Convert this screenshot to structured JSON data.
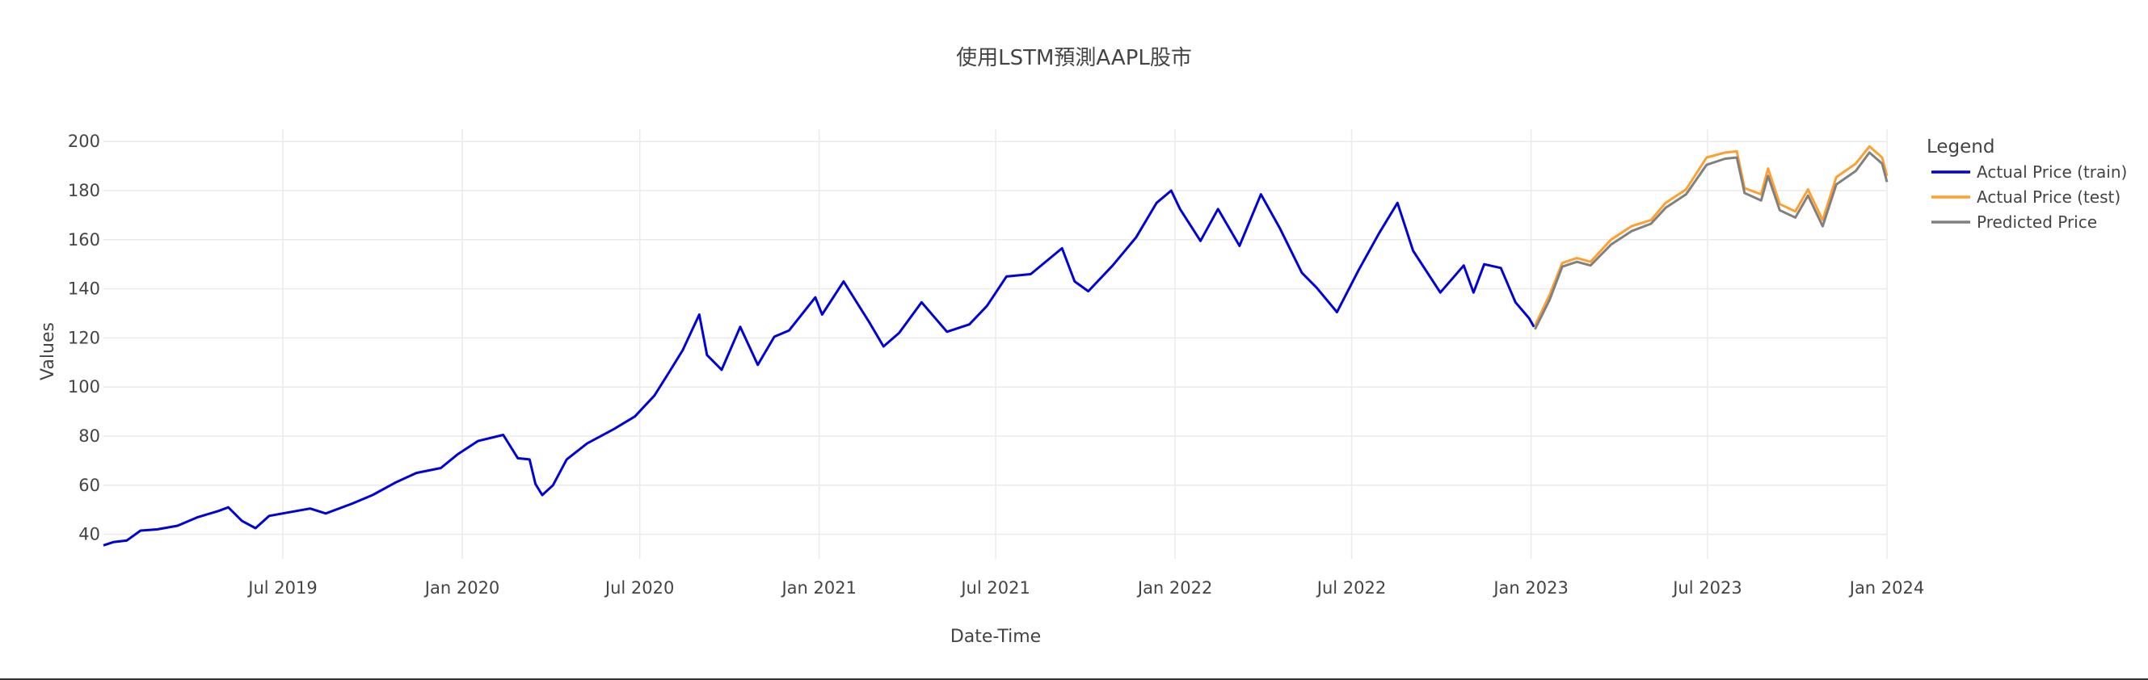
{
  "chart_data": {
    "type": "line",
    "title": "使用LSTM預測AAPL股市",
    "xlabel": "Date-Time",
    "ylabel": "Values",
    "legend_title": "Legend",
    "legend_position": "right",
    "grid": true,
    "x_range": [
      "2018-12-29",
      "2024-01-01"
    ],
    "ylim": [
      30,
      205
    ],
    "y_ticks": [
      40,
      60,
      80,
      100,
      120,
      140,
      160,
      180,
      200
    ],
    "x_ticks": [
      {
        "date": "2019-07-01",
        "label": "Jul 2019"
      },
      {
        "date": "2020-01-01",
        "label": "Jan 2020"
      },
      {
        "date": "2020-07-01",
        "label": "Jul 2020"
      },
      {
        "date": "2021-01-01",
        "label": "Jan 2021"
      },
      {
        "date": "2021-07-01",
        "label": "Jul 2021"
      },
      {
        "date": "2022-01-01",
        "label": "Jan 2022"
      },
      {
        "date": "2022-07-01",
        "label": "Jul 2022"
      },
      {
        "date": "2023-01-01",
        "label": "Jan 2023"
      },
      {
        "date": "2023-07-01",
        "label": "Jul 2023"
      },
      {
        "date": "2024-01-01",
        "label": "Jan 2024"
      }
    ],
    "series": [
      {
        "name": "Actual Price (train)",
        "color": "#0000dd",
        "points": [
          [
            "2018-12-29",
            35.5
          ],
          [
            "2019-01-08",
            36.8
          ],
          [
            "2019-01-22",
            37.5
          ],
          [
            "2019-02-05",
            41.5
          ],
          [
            "2019-02-22",
            42.0
          ],
          [
            "2019-03-15",
            43.5
          ],
          [
            "2019-04-05",
            47.0
          ],
          [
            "2019-04-26",
            49.5
          ],
          [
            "2019-05-06",
            51.0
          ],
          [
            "2019-05-20",
            45.5
          ],
          [
            "2019-06-03",
            42.5
          ],
          [
            "2019-06-17",
            47.5
          ],
          [
            "2019-07-08",
            49.0
          ],
          [
            "2019-07-29",
            50.5
          ],
          [
            "2019-08-14",
            48.5
          ],
          [
            "2019-09-10",
            52.5
          ],
          [
            "2019-10-01",
            56.0
          ],
          [
            "2019-10-24",
            61.0
          ],
          [
            "2019-11-15",
            65.0
          ],
          [
            "2019-12-10",
            67.0
          ],
          [
            "2019-12-27",
            72.5
          ],
          [
            "2020-01-17",
            78.0
          ],
          [
            "2020-02-12",
            80.5
          ],
          [
            "2020-02-27",
            71.0
          ],
          [
            "2020-03-10",
            70.5
          ],
          [
            "2020-03-16",
            60.5
          ],
          [
            "2020-03-23",
            56.0
          ],
          [
            "2020-04-03",
            60.0
          ],
          [
            "2020-04-17",
            70.5
          ],
          [
            "2020-05-08",
            77.0
          ],
          [
            "2020-06-05",
            83.0
          ],
          [
            "2020-06-26",
            88.0
          ],
          [
            "2020-07-16",
            96.5
          ],
          [
            "2020-07-31",
            106.0
          ],
          [
            "2020-08-14",
            115.0
          ],
          [
            "2020-08-31",
            129.5
          ],
          [
            "2020-09-08",
            113.0
          ],
          [
            "2020-09-23",
            107.0
          ],
          [
            "2020-10-12",
            124.5
          ],
          [
            "2020-10-30",
            109.0
          ],
          [
            "2020-11-16",
            120.5
          ],
          [
            "2020-12-01",
            123.0
          ],
          [
            "2020-12-28",
            136.5
          ],
          [
            "2021-01-04",
            129.5
          ],
          [
            "2021-01-26",
            143.0
          ],
          [
            "2021-02-22",
            126.0
          ],
          [
            "2021-03-08",
            116.5
          ],
          [
            "2021-03-24",
            122.0
          ],
          [
            "2021-04-16",
            134.5
          ],
          [
            "2021-05-12",
            122.5
          ],
          [
            "2021-06-04",
            125.5
          ],
          [
            "2021-06-22",
            133.0
          ],
          [
            "2021-07-12",
            145.0
          ],
          [
            "2021-08-06",
            146.0
          ],
          [
            "2021-09-07",
            156.5
          ],
          [
            "2021-09-20",
            143.0
          ],
          [
            "2021-10-04",
            139.0
          ],
          [
            "2021-10-29",
            149.5
          ],
          [
            "2021-11-22",
            161.0
          ],
          [
            "2021-12-13",
            175.0
          ],
          [
            "2021-12-28",
            180.0
          ],
          [
            "2022-01-06",
            172.5
          ],
          [
            "2022-01-27",
            159.5
          ],
          [
            "2022-02-14",
            172.5
          ],
          [
            "2022-03-08",
            157.5
          ],
          [
            "2022-03-30",
            178.5
          ],
          [
            "2022-04-18",
            165.0
          ],
          [
            "2022-05-11",
            146.5
          ],
          [
            "2022-05-26",
            140.5
          ],
          [
            "2022-06-16",
            130.5
          ],
          [
            "2022-07-08",
            147.5
          ],
          [
            "2022-07-29",
            162.5
          ],
          [
            "2022-08-17",
            175.0
          ],
          [
            "2022-09-02",
            155.5
          ],
          [
            "2022-09-30",
            138.5
          ],
          [
            "2022-10-24",
            149.5
          ],
          [
            "2022-11-03",
            138.5
          ],
          [
            "2022-11-14",
            150.0
          ],
          [
            "2022-12-01",
            148.5
          ],
          [
            "2022-12-16",
            134.5
          ],
          [
            "2022-12-30",
            128.0
          ],
          [
            "2023-01-04",
            124.5
          ]
        ]
      },
      {
        "name": "Actual Price (test)",
        "color": "#ff9f2e",
        "points": [
          [
            "2023-01-05",
            125.0
          ],
          [
            "2023-01-20",
            137.5
          ],
          [
            "2023-02-02",
            150.5
          ],
          [
            "2023-02-17",
            152.5
          ],
          [
            "2023-03-03",
            151.0
          ],
          [
            "2023-03-24",
            160.0
          ],
          [
            "2023-04-14",
            165.5
          ],
          [
            "2023-05-04",
            168.0
          ],
          [
            "2023-05-19",
            175.0
          ],
          [
            "2023-06-09",
            180.5
          ],
          [
            "2023-06-30",
            193.5
          ],
          [
            "2023-07-19",
            195.5
          ],
          [
            "2023-07-31",
            196.0
          ],
          [
            "2023-08-08",
            181.0
          ],
          [
            "2023-08-25",
            178.5
          ],
          [
            "2023-09-01",
            189.0
          ],
          [
            "2023-09-13",
            174.5
          ],
          [
            "2023-09-29",
            171.5
          ],
          [
            "2023-10-12",
            180.5
          ],
          [
            "2023-10-27",
            168.0
          ],
          [
            "2023-11-10",
            185.5
          ],
          [
            "2023-11-30",
            191.0
          ],
          [
            "2023-12-14",
            198.0
          ],
          [
            "2023-12-27",
            193.5
          ],
          [
            "2024-01-01",
            186.0
          ]
        ]
      },
      {
        "name": "Predicted Price",
        "color": "#808080",
        "points": [
          [
            "2023-01-05",
            123.5
          ],
          [
            "2023-01-20",
            135.5
          ],
          [
            "2023-02-02",
            149.0
          ],
          [
            "2023-02-17",
            151.0
          ],
          [
            "2023-03-03",
            149.5
          ],
          [
            "2023-03-24",
            158.0
          ],
          [
            "2023-04-14",
            163.5
          ],
          [
            "2023-05-04",
            166.5
          ],
          [
            "2023-05-19",
            173.0
          ],
          [
            "2023-06-09",
            178.5
          ],
          [
            "2023-06-30",
            190.5
          ],
          [
            "2023-07-19",
            193.0
          ],
          [
            "2023-07-31",
            193.5
          ],
          [
            "2023-08-08",
            179.0
          ],
          [
            "2023-08-25",
            176.0
          ],
          [
            "2023-09-01",
            186.0
          ],
          [
            "2023-09-13",
            172.0
          ],
          [
            "2023-09-29",
            169.0
          ],
          [
            "2023-10-12",
            178.0
          ],
          [
            "2023-10-27",
            165.5
          ],
          [
            "2023-11-10",
            182.5
          ],
          [
            "2023-11-30",
            188.0
          ],
          [
            "2023-12-14",
            195.5
          ],
          [
            "2023-12-27",
            191.0
          ],
          [
            "2024-01-01",
            183.5
          ]
        ]
      }
    ]
  }
}
